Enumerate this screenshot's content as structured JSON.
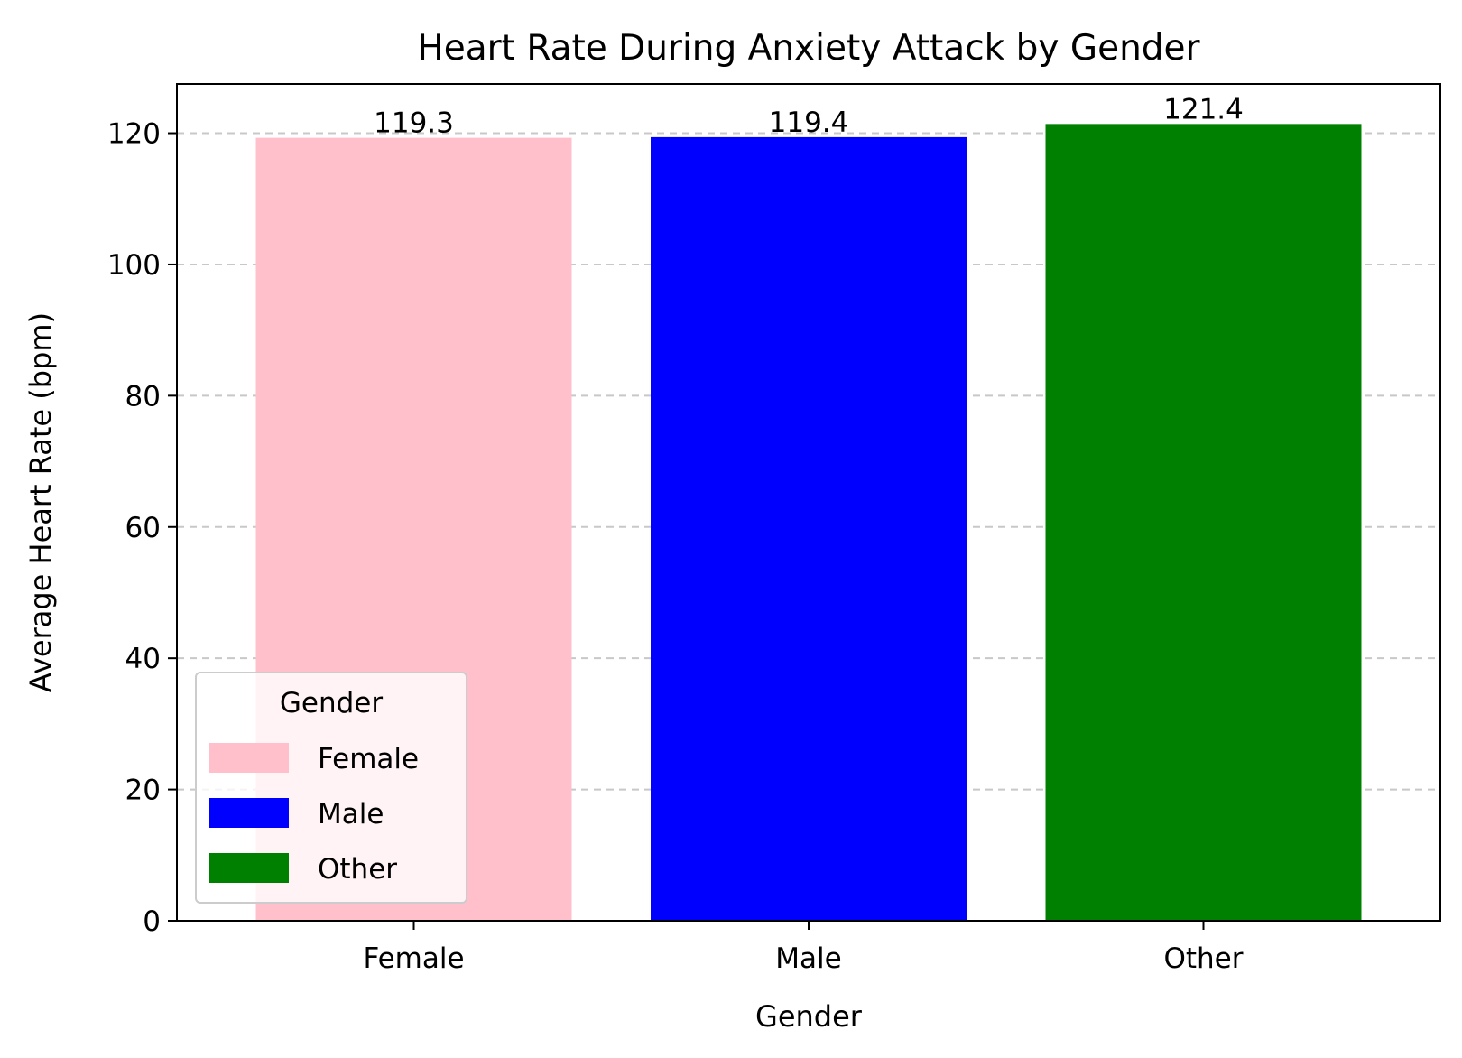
{
  "chart_data": {
    "type": "bar",
    "title": "Heart Rate During Anxiety Attack by Gender",
    "xlabel": "Gender",
    "ylabel": "Average Heart Rate (bpm)",
    "categories": [
      "Female",
      "Male",
      "Other"
    ],
    "values": [
      119.3,
      119.4,
      121.4
    ],
    "data_labels": [
      "119.3",
      "119.4",
      "121.4"
    ],
    "colors": [
      "#ffc0cb",
      "#0000ff",
      "#008000"
    ],
    "ylim": [
      0,
      127.5
    ],
    "yticks": [
      0,
      20,
      40,
      60,
      80,
      100,
      120
    ],
    "grid": "y-dashed",
    "legend": {
      "title": "Gender",
      "placement": "lower-left",
      "entries": [
        "Female",
        "Male",
        "Other"
      ]
    }
  }
}
